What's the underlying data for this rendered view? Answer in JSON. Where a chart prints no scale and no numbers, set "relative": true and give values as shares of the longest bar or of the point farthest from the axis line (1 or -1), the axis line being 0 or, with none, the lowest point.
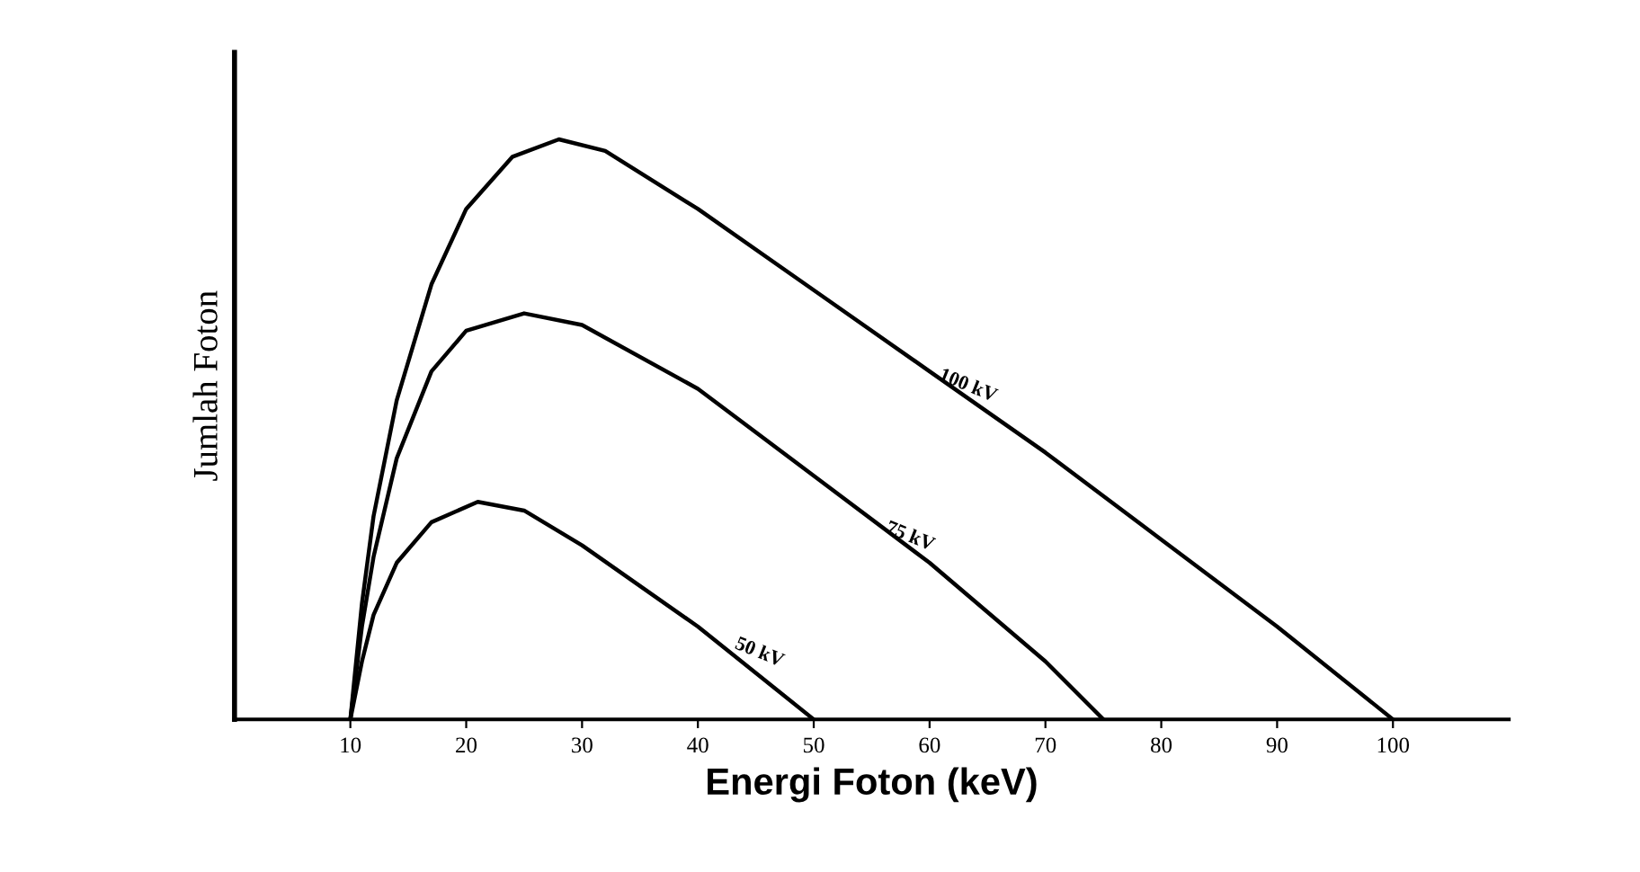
{
  "chart_data": {
    "type": "line",
    "relative": true,
    "xlabel": "Energi Foton (keV)",
    "ylabel": "Jumlah Foton",
    "xlim": [
      0,
      110
    ],
    "xticks": [
      10,
      20,
      30,
      40,
      50,
      60,
      70,
      80,
      90,
      100
    ],
    "grid": false,
    "legend": false,
    "marker": "none",
    "line_style": "solid",
    "tick_labels": "x",
    "series": [
      {
        "color": "#000000",
        "x": [
          10,
          11,
          12,
          14,
          17,
          20,
          24,
          28,
          32,
          40,
          50,
          60,
          70,
          80,
          90,
          100
        ],
        "values": [
          0,
          0.2,
          0.35,
          0.55,
          0.75,
          0.88,
          0.97,
          1.0,
          0.98,
          0.88,
          0.74,
          0.6,
          0.46,
          0.31,
          0.16,
          0
        ]
      },
      {
        "color": "#000000",
        "x": [
          10,
          11,
          12,
          14,
          17,
          20,
          25,
          30,
          40,
          50,
          60,
          70,
          75
        ],
        "values": [
          0,
          0.16,
          0.28,
          0.45,
          0.6,
          0.67,
          0.7,
          0.68,
          0.57,
          0.42,
          0.27,
          0.1,
          0
        ]
      },
      {
        "color": "#000000",
        "x": [
          10,
          11,
          12,
          14,
          17,
          21,
          25,
          30,
          40,
          50
        ],
        "values": [
          0,
          0.1,
          0.18,
          0.27,
          0.34,
          0.375,
          0.36,
          0.3,
          0.16,
          0
        ]
      }
    ],
    "annotations": [
      {
        "text": "100 kV",
        "x": 63,
        "y": 0.56
      },
      {
        "text": "75 kV",
        "x": 58,
        "y": 0.3
      },
      {
        "text": "50 kV",
        "x": 45,
        "y": 0.1
      }
    ]
  }
}
